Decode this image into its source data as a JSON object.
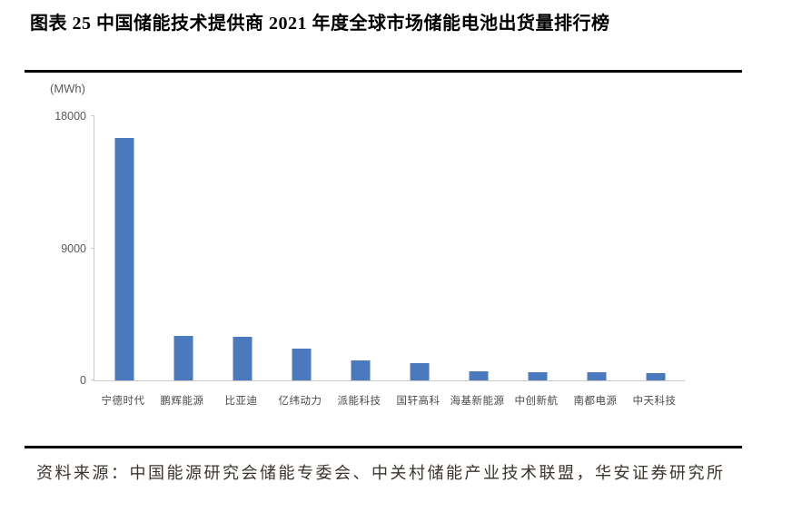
{
  "page": {
    "title": "图表 25 中国储能技术提供商 2021 年度全球市场储能电池出货量排行榜",
    "source": "资料来源：中国能源研究会储能专委会、中关村储能产业技术联盟，华安证券研究所"
  },
  "chart_data": {
    "type": "bar",
    "title": "图表 25 中国储能技术提供商 2021 年度全球市场储能电池出货量排行榜",
    "unit_label": "(MWh)",
    "categories": [
      "宁德时代",
      "鹏辉能源",
      "比亚迪",
      "亿纬动力",
      "派能科技",
      "国轩高科",
      "海基新能源",
      "中创新航",
      "南都电源",
      "中天科技"
    ],
    "values": [
      16500,
      3050,
      3000,
      2150,
      1350,
      1200,
      620,
      560,
      550,
      520
    ],
    "xlabel": "",
    "ylabel": "",
    "ylim": [
      0,
      18000
    ],
    "y_ticks": [
      0,
      9000,
      18000
    ],
    "bar_color": "#4b79be",
    "axis_color": "#c9c9c9",
    "tick_label_color": "#595959",
    "grid": false,
    "legend": false
  }
}
